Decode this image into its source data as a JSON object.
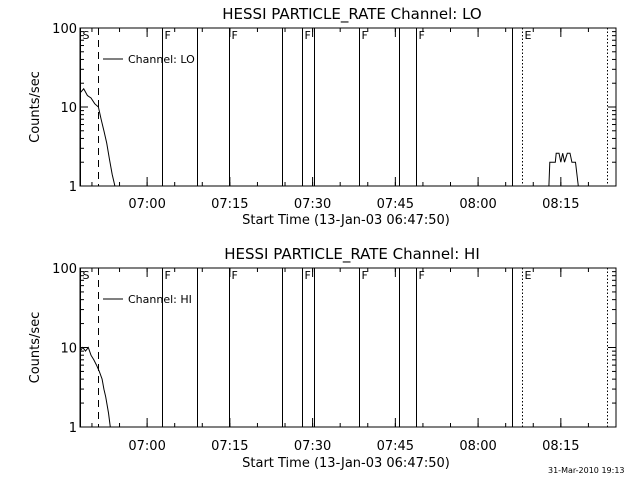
{
  "footer_timestamp": "31-Mar-2010 19:13",
  "chart_data": [
    {
      "type": "line",
      "title": "HESSI PARTICLE_RATE Channel: LO",
      "xlabel": "Start Time (13-Jan-03 06:47:50)",
      "ylabel": "Counts/sec",
      "yscale": "log",
      "ylim": [
        1,
        100
      ],
      "xlim": [
        "06:47:50",
        "08:25:00"
      ],
      "x_ticks": [
        "07:00",
        "07:15",
        "07:30",
        "07:45",
        "08:00",
        "08:15"
      ],
      "y_ticks": [
        "1",
        "10",
        "100"
      ],
      "legend": {
        "label": "Channel: LO",
        "placement": "top-left"
      },
      "markers": [
        {
          "label": "S",
          "time": "06:47:50",
          "style": "solid"
        },
        {
          "label": "",
          "time": "06:51:10",
          "style": "dashed"
        },
        {
          "label": "F",
          "time": "07:02:40",
          "style": "solid"
        },
        {
          "label": "",
          "time": "07:09:00",
          "style": "solid"
        },
        {
          "label": "F",
          "time": "07:14:50",
          "style": "solid"
        },
        {
          "label": "",
          "time": "07:24:30",
          "style": "solid"
        },
        {
          "label": "F",
          "time": "07:28:10",
          "style": "solid"
        },
        {
          "label": "",
          "time": "07:30:10",
          "style": "solid"
        },
        {
          "label": "F",
          "time": "07:38:30",
          "style": "solid"
        },
        {
          "label": "",
          "time": "07:45:40",
          "style": "solid"
        },
        {
          "label": "F",
          "time": "07:48:50",
          "style": "solid"
        },
        {
          "label": "",
          "time": "08:06:10",
          "style": "solid"
        },
        {
          "label": "E",
          "time": "08:08:00",
          "style": "dotted"
        },
        {
          "label": "",
          "time": "08:23:20",
          "style": "dotted"
        }
      ],
      "series": [
        {
          "segments": [
            [
              [
                "06:47:50",
                15
              ],
              [
                "06:48:30",
                17
              ],
              [
                "06:49:10",
                14
              ],
              [
                "06:49:50",
                13
              ],
              [
                "06:50:30",
                11
              ],
              [
                "06:51:10",
                10
              ],
              [
                "06:51:40",
                7
              ],
              [
                "06:52:10",
                5
              ],
              [
                "06:52:40",
                3.5
              ],
              [
                "06:53:10",
                2.2
              ],
              [
                "06:53:40",
                1.4
              ],
              [
                "06:54:10",
                1
              ]
            ],
            [
              [
                "08:12:50",
                1
              ],
              [
                "08:13:00",
                2
              ],
              [
                "08:14:00",
                2
              ],
              [
                "08:14:10",
                2.6
              ],
              [
                "08:14:40",
                2.6
              ],
              [
                "08:15:00",
                2
              ],
              [
                "08:15:20",
                2.6
              ],
              [
                "08:15:40",
                2
              ],
              [
                "08:16:10",
                2.6
              ],
              [
                "08:16:40",
                2.6
              ],
              [
                "08:17:00",
                2
              ],
              [
                "08:17:40",
                2
              ],
              [
                "08:18:10",
                1
              ]
            ]
          ]
        }
      ]
    },
    {
      "type": "line",
      "title": "HESSI PARTICLE_RATE Channel: HI",
      "xlabel": "Start Time (13-Jan-03 06:47:50)",
      "ylabel": "Counts/sec",
      "yscale": "log",
      "ylim": [
        1,
        100
      ],
      "xlim": [
        "06:47:50",
        "08:25:00"
      ],
      "x_ticks": [
        "07:00",
        "07:15",
        "07:30",
        "07:45",
        "08:00",
        "08:15"
      ],
      "y_ticks": [
        "1",
        "10",
        "100"
      ],
      "legend": {
        "label": "Channel: HI",
        "placement": "top-left"
      },
      "markers": [
        {
          "label": "S",
          "time": "06:47:50",
          "style": "solid"
        },
        {
          "label": "",
          "time": "06:51:10",
          "style": "dashed"
        },
        {
          "label": "F",
          "time": "07:02:40",
          "style": "solid"
        },
        {
          "label": "",
          "time": "07:09:00",
          "style": "solid"
        },
        {
          "label": "F",
          "time": "07:14:50",
          "style": "solid"
        },
        {
          "label": "",
          "time": "07:24:30",
          "style": "solid"
        },
        {
          "label": "F",
          "time": "07:28:10",
          "style": "solid"
        },
        {
          "label": "",
          "time": "07:30:10",
          "style": "solid"
        },
        {
          "label": "F",
          "time": "07:38:30",
          "style": "solid"
        },
        {
          "label": "",
          "time": "07:45:40",
          "style": "solid"
        },
        {
          "label": "F",
          "time": "07:48:50",
          "style": "solid"
        },
        {
          "label": "",
          "time": "08:06:10",
          "style": "solid"
        },
        {
          "label": "E",
          "time": "08:08:00",
          "style": "dotted"
        },
        {
          "label": "",
          "time": "08:23:20",
          "style": "dotted"
        }
      ],
      "series": [
        {
          "segments": [
            [
              [
                "06:47:50",
                9
              ],
              [
                "06:48:20",
                10
              ],
              [
                "06:48:50",
                9
              ],
              [
                "06:49:20",
                10
              ],
              [
                "06:49:50",
                8
              ],
              [
                "06:50:20",
                7
              ],
              [
                "06:50:50",
                6
              ],
              [
                "06:51:20",
                5
              ],
              [
                "06:51:50",
                4
              ],
              [
                "06:52:10",
                3
              ],
              [
                "06:52:30",
                2.4
              ],
              [
                "06:53:00",
                1.5
              ],
              [
                "06:53:20",
                1
              ]
            ]
          ]
        }
      ]
    }
  ]
}
